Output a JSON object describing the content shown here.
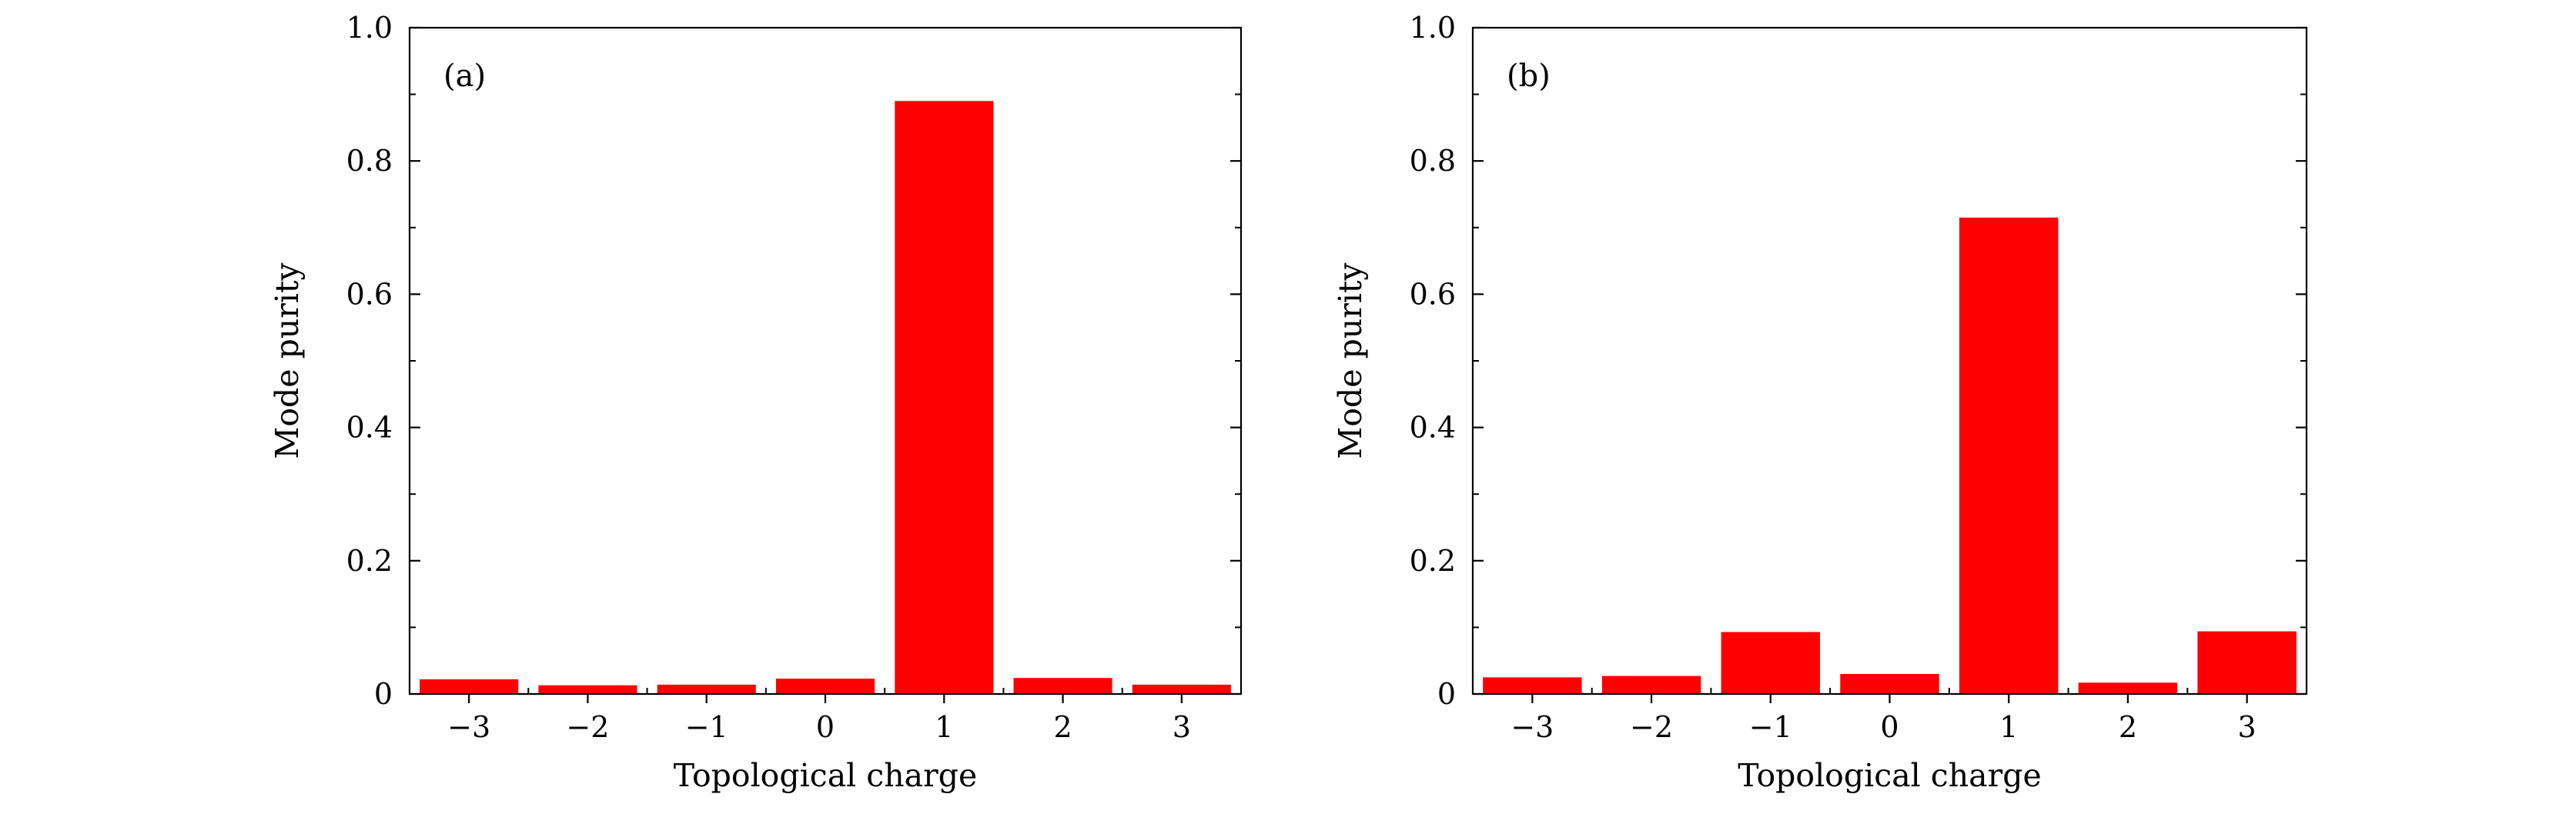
{
  "chart_data": [
    {
      "type": "bar",
      "panel_label": "(a)",
      "categories": [
        "−3",
        "−2",
        "−1",
        "0",
        "1",
        "2",
        "3"
      ],
      "values": [
        0.022,
        0.013,
        0.014,
        0.023,
        0.89,
        0.024,
        0.014
      ],
      "xlabel": "Topological charge",
      "ylabel": "Mode purity",
      "ylim": [
        0,
        1.0
      ],
      "yticks": [
        0,
        0.2,
        0.4,
        0.6,
        0.8,
        1.0
      ],
      "ytick_labels": [
        "0",
        "0.2",
        "0.4",
        "0.6",
        "0.8",
        "1.0"
      ],
      "grid": false,
      "color": "#ff0000"
    },
    {
      "type": "bar",
      "panel_label": "(b)",
      "categories": [
        "−3",
        "−2",
        "−1",
        "0",
        "1",
        "2",
        "3"
      ],
      "values": [
        0.025,
        0.027,
        0.093,
        0.03,
        0.715,
        0.017,
        0.094
      ],
      "xlabel": "Topological charge",
      "ylabel": "Mode purity",
      "ylim": [
        0,
        1.0
      ],
      "yticks": [
        0,
        0.2,
        0.4,
        0.6,
        0.8,
        1.0
      ],
      "ytick_labels": [
        "0",
        "0.2",
        "0.4",
        "0.6",
        "0.8",
        "1.0"
      ],
      "grid": false,
      "color": "#ff0000"
    }
  ]
}
